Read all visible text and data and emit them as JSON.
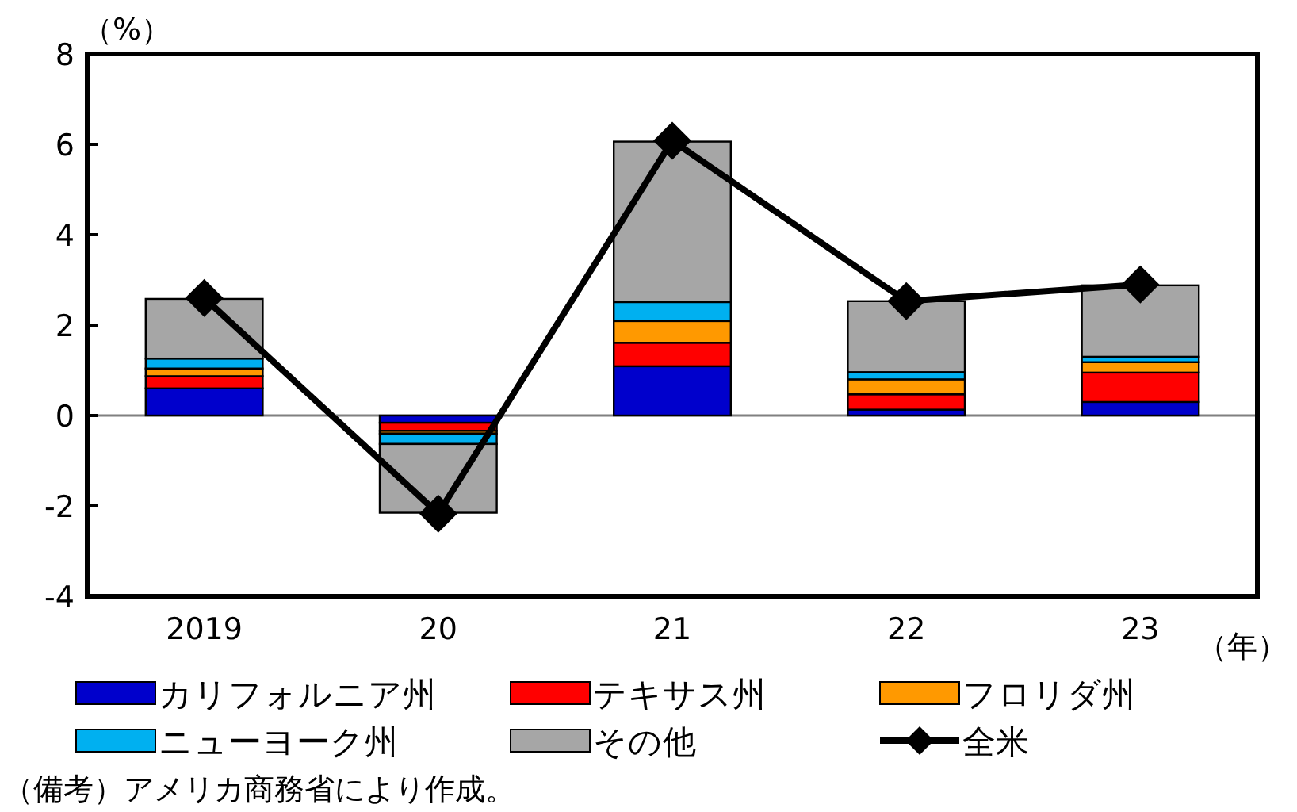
{
  "chart_data": {
    "type": "bar",
    "stacked": true,
    "ylabel": "（%）",
    "xlabel": "（年）",
    "categories": [
      "2019",
      "20",
      "21",
      "22",
      "23"
    ],
    "ref_lines": [
      {
        "axis": "y",
        "value": 0,
        "color": "#808080"
      }
    ],
    "ylim": [
      -4,
      8
    ],
    "yticks": [
      -4,
      -2,
      0,
      2,
      4,
      6,
      8
    ],
    "grid": false,
    "legend": "bottom",
    "series": [
      {
        "name": "カリフォルニア州",
        "color": "#0000cc",
        "values": [
          0.6,
          -0.16,
          1.09,
          0.13,
          0.3
        ]
      },
      {
        "name": "テキサス州",
        "color": "#ff0000",
        "values": [
          0.27,
          -0.18,
          0.52,
          0.34,
          0.65
        ]
      },
      {
        "name": "フロリダ州",
        "color": "#ff9900",
        "values": [
          0.17,
          -0.06,
          0.48,
          0.33,
          0.23
        ]
      },
      {
        "name": "ニューヨーク州",
        "color": "#00b0f0",
        "values": [
          0.22,
          -0.23,
          0.42,
          0.16,
          0.12
        ]
      },
      {
        "name": "その他",
        "color": "#a6a6a6",
        "values": [
          1.32,
          -1.52,
          3.55,
          1.57,
          1.58
        ]
      },
      {
        "name": "全米",
        "color": "#000000",
        "type": "line",
        "marker": "diamond",
        "values": [
          2.6,
          -2.17,
          6.08,
          2.53,
          2.9
        ]
      }
    ],
    "annotations": [
      "（備考）アメリカ商務省により作成。"
    ]
  }
}
